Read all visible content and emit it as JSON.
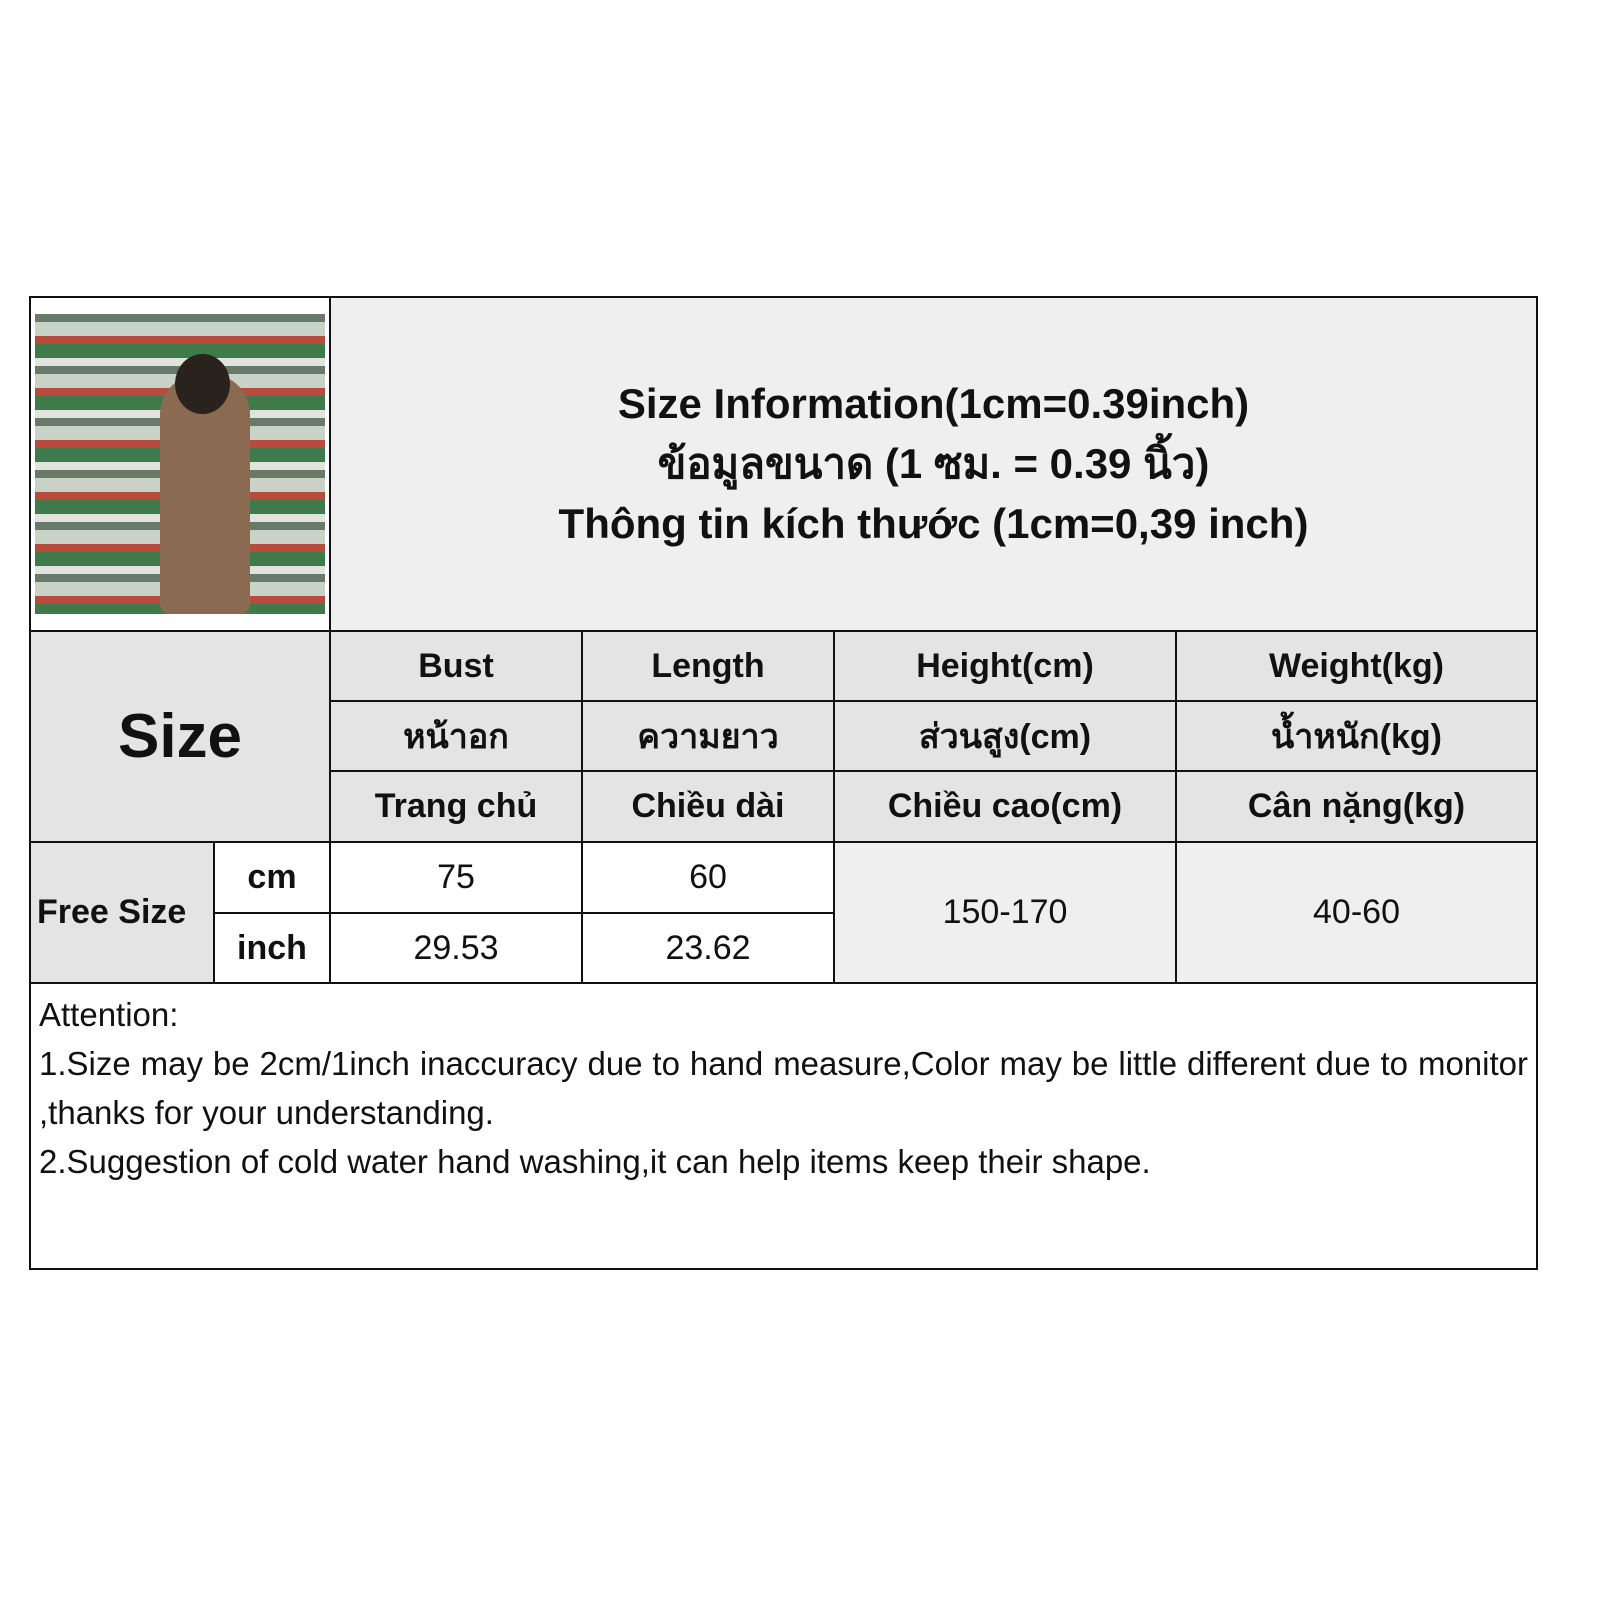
{
  "title": {
    "line1": "Size Information(1cm=0.39inch)",
    "line2": "ข้อมูลขนาด (1 ซม. = 0.39 นิ้ว)",
    "line3": "Thông tin kích thước (1cm=0,39 inch)"
  },
  "size_label": "Size",
  "headers": [
    {
      "en": "Bust",
      "th": "หน้าอก",
      "vi": "Trang chủ"
    },
    {
      "en": "Length",
      "th": "ความยาว",
      "vi": "Chiều dài"
    },
    {
      "en": "Height(cm)",
      "th": "ส่วนสูง(cm)",
      "vi": "Chiều cao(cm)"
    },
    {
      "en": "Weight(kg)",
      "th": "น้ำหนัก(kg)",
      "vi": "Cân nặng(kg)"
    }
  ],
  "row": {
    "size": "Free Size",
    "unit_cm": "cm",
    "unit_inch": "inch",
    "bust_cm": "75",
    "bust_inch": "29.53",
    "length_cm": "60",
    "length_inch": "23.62",
    "height": "150-170",
    "weight": "40-60"
  },
  "attention": {
    "heading": "Attention:",
    "line1": "1.Size may be 2cm/1inch inaccuracy due to hand measure,Color may be little different due to monitor ,thanks for your understanding.",
    "line2": "2.Suggestion of cold water hand washing,it can help items keep their shape."
  }
}
